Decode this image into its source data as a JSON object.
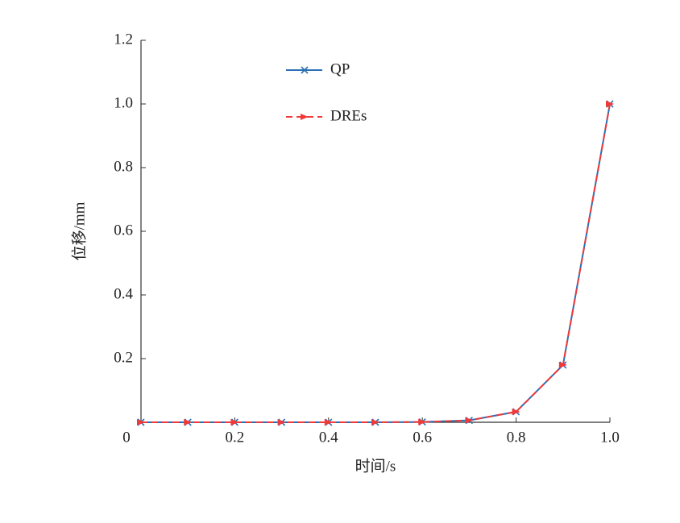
{
  "chart_data": {
    "type": "line",
    "x_label": "时间/s",
    "y_label": "位移/mm",
    "x": [
      0,
      0.1,
      0.2,
      0.3,
      0.4,
      0.5,
      0.6,
      0.7,
      0.8,
      0.9,
      1
    ],
    "series": [
      {
        "name": "QP",
        "color": "#2a6fb5",
        "dashed": false,
        "marker": "x",
        "values": [
          0,
          0,
          0,
          0,
          0,
          0,
          0.001,
          0.006,
          0.033,
          0.18,
          1
        ]
      },
      {
        "name": "DREs",
        "color": "#f03a3a",
        "dashed": true,
        "marker": "arrow",
        "values": [
          0,
          0,
          0,
          0,
          0,
          0,
          0.001,
          0.006,
          0.033,
          0.18,
          1
        ]
      }
    ],
    "xlim": [
      0,
      1
    ],
    "ylim": [
      0,
      1.2
    ],
    "xticks": [
      0,
      0.2,
      0.4,
      0.6,
      0.8,
      {
        "value": 1,
        "label": "1.0"
      }
    ],
    "yticks": [
      0.2,
      0.4,
      0.6,
      0.8,
      {
        "value": 1,
        "label": "1.0"
      },
      1.2
    ],
    "grid": false
  }
}
